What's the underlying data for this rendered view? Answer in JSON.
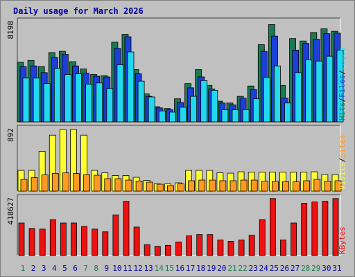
{
  "title": "Daily usage for March 2026",
  "colors": {
    "hits": "#1a7a50",
    "files": "#1c3fd8",
    "pages": "#22d8ef",
    "visits": "#ffff33",
    "sites": "#ff9922",
    "kbytes": "#ee1111",
    "weekend_day": "#1a7a50",
    "weekday": "#0000a0",
    "plot_bg": "#c0c0c0"
  },
  "chart_data": [
    {
      "type": "bar",
      "panel": "hits-files-pages",
      "y_label_max": "8198",
      "ylim": [
        0,
        8198
      ],
      "side_labels": [
        "Pages",
        "Files",
        "Hits"
      ],
      "categories": [
        "1",
        "2",
        "3",
        "4",
        "5",
        "6",
        "7",
        "8",
        "9",
        "10",
        "11",
        "12",
        "13",
        "14",
        "15",
        "16",
        "17",
        "18",
        "19",
        "20",
        "21",
        "22",
        "23",
        "24",
        "25",
        "26",
        "27",
        "28",
        "29",
        "30",
        "31"
      ],
      "series": [
        {
          "name": "Hits",
          "values": [
            4900,
            5050,
            4550,
            5700,
            5800,
            4950,
            4350,
            3900,
            3800,
            6550,
            7200,
            4300,
            2300,
            1250,
            1100,
            1900,
            3150,
            4300,
            3000,
            1700,
            1550,
            2100,
            2950,
            6350,
            8000,
            3000,
            6850,
            6650,
            7350,
            7650,
            7450
          ]
        },
        {
          "name": "Files",
          "values": [
            4550,
            4600,
            4050,
            5300,
            5550,
            4600,
            4000,
            3750,
            3700,
            6050,
            7000,
            3950,
            2100,
            1150,
            1000,
            1600,
            2800,
            3700,
            2700,
            1550,
            1400,
            1950,
            2650,
            5800,
            7050,
            1950,
            5900,
            6450,
            6800,
            7250,
            7300
          ]
        },
        {
          "name": "Pages",
          "values": [
            3600,
            3600,
            3150,
            4400,
            3900,
            3950,
            3100,
            3200,
            2750,
            4700,
            5750,
            3350,
            2050,
            900,
            800,
            1200,
            2100,
            3400,
            2600,
            1000,
            1000,
            1000,
            1900,
            3650,
            4600,
            1550,
            4050,
            5100,
            5000,
            5400,
            5900
          ]
        }
      ]
    },
    {
      "type": "bar",
      "panel": "visits-sites",
      "y_label_max": "892",
      "ylim": [
        0,
        892
      ],
      "side_labels": [
        "Sites",
        "Visits"
      ],
      "categories": [
        "1",
        "2",
        "3",
        "4",
        "5",
        "6",
        "7",
        "8",
        "9",
        "10",
        "11",
        "12",
        "13",
        "14",
        "15",
        "16",
        "17",
        "18",
        "19",
        "20",
        "21",
        "22",
        "23",
        "24",
        "25",
        "26",
        "27",
        "28",
        "29",
        "30",
        "31"
      ],
      "series": [
        {
          "name": "Visits",
          "values": [
            300,
            300,
            575,
            810,
            892,
            892,
            810,
            300,
            265,
            225,
            225,
            200,
            155,
            105,
            105,
            120,
            300,
            300,
            300,
            265,
            260,
            280,
            275,
            275,
            275,
            275,
            275,
            275,
            280,
            240,
            240
          ]
        },
        {
          "name": "Sites",
          "values": [
            170,
            195,
            235,
            255,
            265,
            255,
            240,
            230,
            180,
            180,
            160,
            145,
            130,
            100,
            80,
            105,
            150,
            160,
            160,
            150,
            150,
            160,
            160,
            145,
            140,
            135,
            135,
            150,
            170,
            145,
            150
          ]
        }
      ]
    },
    {
      "type": "bar",
      "panel": "kbytes",
      "y_label_max": "418627",
      "ylim": [
        0,
        418627
      ],
      "side_labels": [
        "KBytes"
      ],
      "categories": [
        "1",
        "2",
        "3",
        "4",
        "5",
        "6",
        "7",
        "8",
        "9",
        "10",
        "11",
        "12",
        "13",
        "14",
        "15",
        "16",
        "17",
        "18",
        "19",
        "20",
        "21",
        "22",
        "23",
        "24",
        "25",
        "26",
        "27",
        "28",
        "29",
        "30",
        "31"
      ],
      "series": [
        {
          "name": "KBytes",
          "values": [
            240000,
            200000,
            195000,
            265000,
            240000,
            240000,
            215000,
            195000,
            175000,
            300000,
            400000,
            210000,
            80000,
            68000,
            75000,
            100000,
            145000,
            155000,
            155000,
            115000,
            105000,
            115000,
            150000,
            265000,
            420000,
            115000,
            240000,
            385000,
            395000,
            400000,
            420000
          ]
        }
      ]
    }
  ]
}
